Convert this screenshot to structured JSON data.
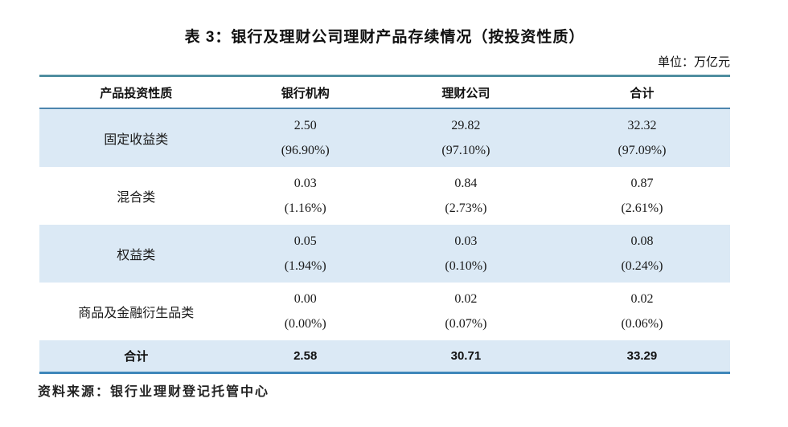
{
  "page": {
    "title": "表 3：银行及理财公司理财产品存续情况（按投资性质）",
    "unit_label": "单位：万亿元",
    "source_note": "资料来源：银行业理财登记托管中心"
  },
  "colors": {
    "row_highlight": "#dbe9f5",
    "table_top_border": "#4f8ea0",
    "header_underline": "#4d86ae",
    "table_bottom_border": "#3f87ba",
    "text": "#1a1a1a"
  },
  "chart_data": {
    "type": "table",
    "title": "表 3：银行及理财公司理财产品存续情况（按投资性质）",
    "unit": "万亿元",
    "columns": [
      "产品投资性质",
      "银行机构",
      "理财公司",
      "合计"
    ],
    "rows": [
      {
        "label": "固定收益类",
        "values": [
          "2.50",
          "29.82",
          "32.32"
        ],
        "pcts": [
          "(96.90%)",
          "(97.10%)",
          "(97.09%)"
        ]
      },
      {
        "label": "混合类",
        "values": [
          "0.03",
          "0.84",
          "0.87"
        ],
        "pcts": [
          "(1.16%)",
          "(2.73%)",
          "(2.61%)"
        ]
      },
      {
        "label": "权益类",
        "values": [
          "0.05",
          "0.03",
          "0.08"
        ],
        "pcts": [
          "(1.94%)",
          "(0.10%)",
          "(0.24%)"
        ]
      },
      {
        "label": "商品及金融衍生品类",
        "values": [
          "0.00",
          "0.02",
          "0.02"
        ],
        "pcts": [
          "(0.00%)",
          "(0.07%)",
          "(0.06%)"
        ]
      }
    ],
    "total_row": {
      "label": "合计",
      "values": [
        "2.58",
        "30.71",
        "33.29"
      ]
    }
  }
}
